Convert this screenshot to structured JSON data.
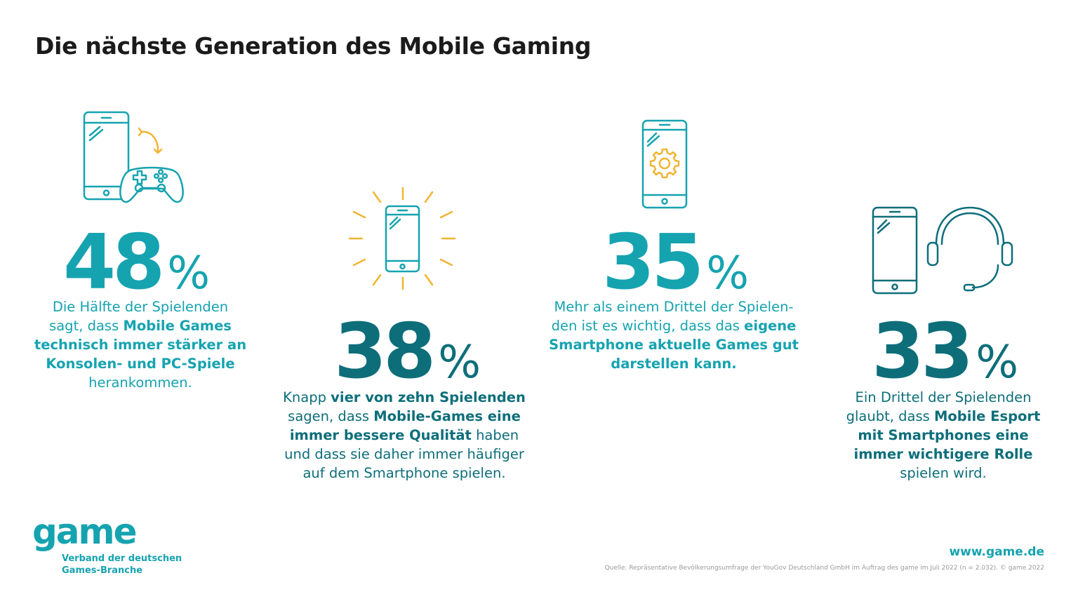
{
  "title": "Die nächste Generation des Mobile Gaming",
  "colors": {
    "teal": "#15a3b0",
    "dark_teal": "#0d6e7a",
    "yellow": "#f2b431",
    "text": "#1b1b1b"
  },
  "stats": [
    {
      "value": "48",
      "unit": "%",
      "icon": "smartphone-gamepad-icon",
      "text": {
        "pre1": "Die Hälfte der Spielenden",
        "pre2": "sagt, dass ",
        "bold1": "Mobile Games",
        "bold2": "technisch immer stärker an",
        "bold3": "Konsolen- und PC-Spiele",
        "post": "herankommen."
      }
    },
    {
      "value": "38",
      "unit": "%",
      "icon": "smartphone-shine-icon",
      "text": {
        "pre": "Knapp ",
        "bold1": "vier von zehn Spielenden",
        "pre2": "sagen, dass ",
        "bold2": "Mobile-Games eine",
        "bold3": "immer bessere Qualität",
        "mid": " haben",
        "line4": "und dass sie daher immer häufiger",
        "line5": "auf dem Smartphone spielen."
      }
    },
    {
      "value": "35",
      "unit": "%",
      "icon": "smartphone-gear-icon",
      "text": {
        "line1": "Mehr als einem Drittel der Spielen-",
        "pre2": "den ist es wichtig, dass das ",
        "bold1": "eigene",
        "bold2": "Smartphone aktuelle Games gut",
        "bold3": "darstellen kann."
      }
    },
    {
      "value": "33",
      "unit": "%",
      "icon": "smartphone-headset-icon",
      "text": {
        "line1": "Ein Drittel der Spielenden",
        "pre2": "glaubt, dass ",
        "bold1": "Mobile Esport",
        "bold2": "mit Smartphones eine",
        "bold3": "immer wichtigere Rolle",
        "post": "spielen wird."
      }
    }
  ],
  "logo": {
    "word": "game",
    "line1": "Verband der deutschen",
    "line2": "Games-Branche"
  },
  "website": "www.game.de",
  "source": "Quelle: Repräsentative Bevölkerungsumfrage der YouGov Deutschland GmbH im Auftrag des game im Juli 2022 (n = 2.032). © game 2022"
}
